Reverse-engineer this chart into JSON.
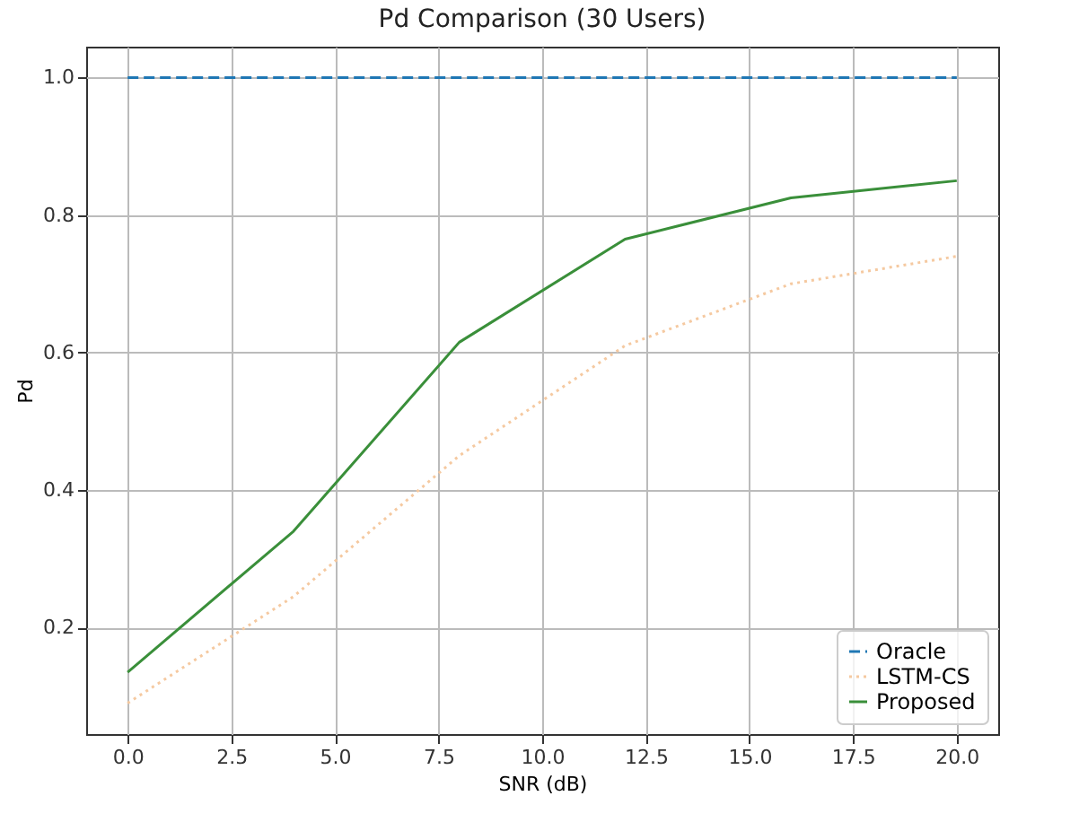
{
  "chart_data": {
    "type": "line",
    "title": "Pd Comparison (30 Users)",
    "xlabel": "SNR (dB)",
    "ylabel": "Pd",
    "x": [
      0,
      4,
      8,
      12,
      16,
      20
    ],
    "series": [
      {
        "name": "Oracle",
        "color": "#1f77b4",
        "line_style": "dashed",
        "values": [
          1.0,
          1.0,
          1.0,
          1.0,
          1.0,
          1.0
        ]
      },
      {
        "name": "LSTM-CS",
        "color": "#f5c9a0",
        "line_style": "dotted",
        "values": [
          0.09,
          0.245,
          0.45,
          0.61,
          0.7,
          0.74
        ]
      },
      {
        "name": "Proposed",
        "color": "#3a8f3a",
        "line_style": "solid",
        "values": [
          0.135,
          0.34,
          0.615,
          0.765,
          0.825,
          0.85
        ]
      }
    ],
    "xlim": [
      -1,
      21
    ],
    "xticks": [
      {
        "value": 0,
        "label": "0.0"
      },
      {
        "value": 2.5,
        "label": "2.5"
      },
      {
        "value": 5,
        "label": "5.0"
      },
      {
        "value": 7.5,
        "label": "7.5"
      },
      {
        "value": 10,
        "label": "10.0"
      },
      {
        "value": 12.5,
        "label": "12.5"
      },
      {
        "value": 15,
        "label": "15.0"
      },
      {
        "value": 17.5,
        "label": "17.5"
      },
      {
        "value": 20,
        "label": "20.0"
      }
    ],
    "ylim": [
      0.045,
      1.045
    ],
    "yticks": [
      {
        "value": 0.2,
        "label": "0.2"
      },
      {
        "value": 0.4,
        "label": "0.4"
      },
      {
        "value": 0.6,
        "label": "0.6"
      },
      {
        "value": 0.8,
        "label": "0.8"
      },
      {
        "value": 1.0,
        "label": "1.0"
      }
    ],
    "grid": true,
    "legend": "bottom right",
    "marker": "none"
  }
}
